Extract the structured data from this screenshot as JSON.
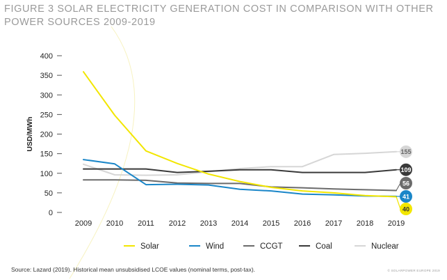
{
  "figure_label": "FIGURE 3",
  "title": "SOLAR ELECTRICITY GENERATION COST IN COMPARISON WITH OTHER POWER SOURCES 2009-2019",
  "source": "Source: Lazard (2019). Historical mean unsubsidised LCOE values (nominal terms, post-tax).",
  "footer_mark": "© SOLARPOWER EUROPE 2019",
  "chart_data": {
    "type": "line",
    "ylabel": "USD/MWh",
    "xlabel": "",
    "x": [
      "2009",
      "2010",
      "2011",
      "2012",
      "2013",
      "2014",
      "2015",
      "2016",
      "2017",
      "2018",
      "2019"
    ],
    "ylim": [
      0,
      400
    ],
    "yticks": [
      0,
      50,
      100,
      150,
      200,
      250,
      300,
      350,
      400
    ],
    "grid": false,
    "legend_position": "bottom",
    "series": [
      {
        "name": "Solar",
        "color": "#f2e600",
        "values": [
          359,
          248,
          157,
          125,
          98,
          79,
          64,
          55,
          50,
          43,
          40
        ],
        "end_label": "40",
        "label_text_color": "#333333"
      },
      {
        "name": "Wind",
        "color": "#1a86c8",
        "values": [
          135,
          124,
          71,
          72,
          70,
          59,
          55,
          47,
          45,
          42,
          41
        ],
        "end_label": "41",
        "label_text_color": "#ffffff"
      },
      {
        "name": "CCGT",
        "color": "#6b6b6b",
        "values": [
          83,
          83,
          82,
          75,
          74,
          74,
          65,
          63,
          60,
          58,
          56
        ],
        "end_label": "56",
        "label_text_color": "#ffffff"
      },
      {
        "name": "Coal",
        "color": "#3a3a3a",
        "values": [
          111,
          111,
          111,
          102,
          105,
          109,
          109,
          102,
          102,
          102,
          109
        ],
        "end_label": "109",
        "label_text_color": "#ffffff"
      },
      {
        "name": "Nuclear",
        "color": "#d6d6d6",
        "values": [
          123,
          96,
          95,
          96,
          104,
          112,
          117,
          117,
          148,
          151,
          155
        ],
        "end_label": "155",
        "label_text_color": "#666666"
      }
    ]
  }
}
